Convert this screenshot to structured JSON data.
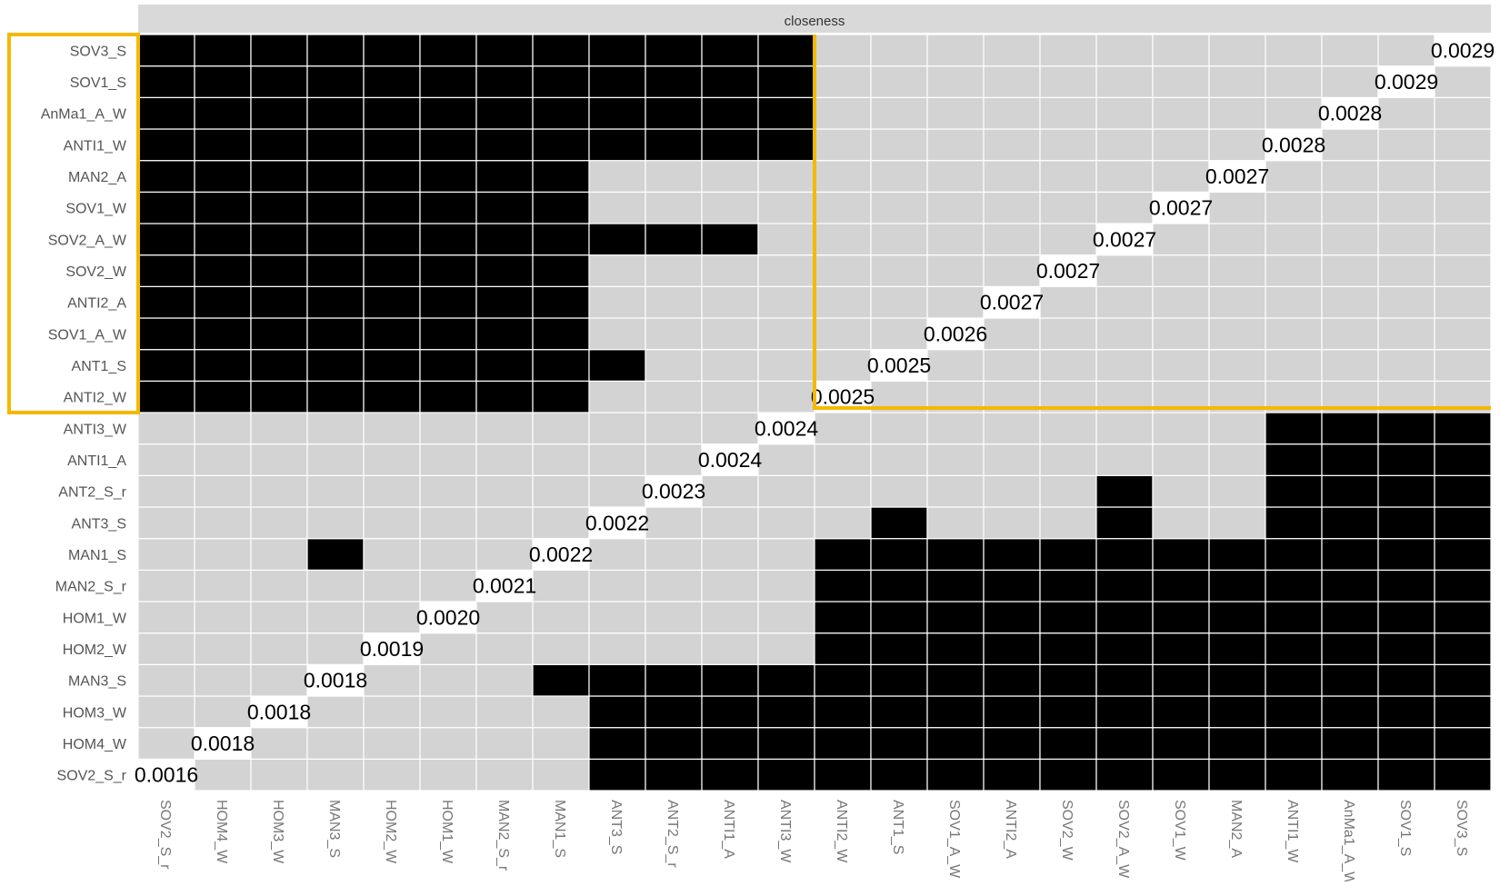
{
  "chart_data": {
    "type": "heatmap",
    "title": "closeness",
    "colors": {
      "significant": "#000000",
      "non_significant": "#d3d3d3",
      "label_bg": "#ffffff",
      "highlight": "#f5b800"
    },
    "nodes": [
      "SOV2_S_r",
      "HOM4_W",
      "HOM3_W",
      "MAN3_S",
      "HOM2_W",
      "HOM1_W",
      "MAN2_S_r",
      "MAN1_S",
      "ANT3_S",
      "ANT2_S_r",
      "ANTI1_A",
      "ANTI3_W",
      "ANTI2_W",
      "ANT1_S",
      "SOV1_A_W",
      "ANTI2_A",
      "SOV2_W",
      "SOV2_A_W",
      "SOV1_W",
      "MAN2_A",
      "ANTI1_W",
      "AnMa1_A_W",
      "SOV1_S",
      "SOV3_S"
    ],
    "y_tick_labels_top_to_bottom": [
      "SOV3_S",
      "SOV1_S",
      "AnMa1_A_W",
      "ANTI1_W",
      "MAN2_A",
      "SOV1_W",
      "SOV2_A_W",
      "SOV2_W",
      "ANTI2_A",
      "SOV1_A_W",
      "ANT1_S",
      "ANTI2_W",
      "ANTI3_W",
      "ANTI1_A",
      "ANT2_S_r",
      "ANT3_S",
      "MAN1_S",
      "MAN2_S_r",
      "HOM1_W",
      "HOM2_W",
      "MAN3_S",
      "HOM3_W",
      "HOM4_W",
      "SOV2_S_r"
    ],
    "diagonal_values": [
      "0.0016",
      "0.0018",
      "0.0018",
      "0.0018",
      "0.0019",
      "0.0020",
      "0.0021",
      "0.0022",
      "0.0022",
      "0.0023",
      "0.0024",
      "0.0024",
      "0.0025",
      "0.0025",
      "0.0026",
      "0.0027",
      "0.0027",
      "0.0027",
      "0.0027",
      "0.0027",
      "0.0028",
      "0.0028",
      "0.0029",
      "0.0029"
    ],
    "significant_pairs": [
      [
        0,
        8
      ],
      [
        0,
        9
      ],
      [
        0,
        10
      ],
      [
        0,
        11
      ],
      [
        0,
        12
      ],
      [
        0,
        13
      ],
      [
        0,
        14
      ],
      [
        0,
        15
      ],
      [
        0,
        16
      ],
      [
        0,
        17
      ],
      [
        0,
        18
      ],
      [
        0,
        19
      ],
      [
        0,
        20
      ],
      [
        0,
        21
      ],
      [
        0,
        22
      ],
      [
        0,
        23
      ],
      [
        1,
        8
      ],
      [
        1,
        9
      ],
      [
        1,
        10
      ],
      [
        1,
        11
      ],
      [
        1,
        12
      ],
      [
        1,
        13
      ],
      [
        1,
        14
      ],
      [
        1,
        15
      ],
      [
        1,
        16
      ],
      [
        1,
        17
      ],
      [
        1,
        18
      ],
      [
        1,
        19
      ],
      [
        1,
        20
      ],
      [
        1,
        21
      ],
      [
        1,
        22
      ],
      [
        1,
        23
      ],
      [
        2,
        8
      ],
      [
        2,
        9
      ],
      [
        2,
        10
      ],
      [
        2,
        11
      ],
      [
        2,
        12
      ],
      [
        2,
        13
      ],
      [
        2,
        14
      ],
      [
        2,
        15
      ],
      [
        2,
        16
      ],
      [
        2,
        17
      ],
      [
        2,
        18
      ],
      [
        2,
        19
      ],
      [
        2,
        20
      ],
      [
        2,
        21
      ],
      [
        2,
        22
      ],
      [
        2,
        23
      ],
      [
        3,
        7
      ],
      [
        3,
        8
      ],
      [
        3,
        9
      ],
      [
        3,
        10
      ],
      [
        3,
        11
      ],
      [
        3,
        12
      ],
      [
        3,
        13
      ],
      [
        3,
        14
      ],
      [
        3,
        15
      ],
      [
        3,
        16
      ],
      [
        3,
        17
      ],
      [
        3,
        18
      ],
      [
        3,
        19
      ],
      [
        3,
        20
      ],
      [
        3,
        21
      ],
      [
        3,
        22
      ],
      [
        3,
        23
      ],
      [
        4,
        12
      ],
      [
        4,
        13
      ],
      [
        4,
        14
      ],
      [
        4,
        15
      ],
      [
        4,
        16
      ],
      [
        4,
        17
      ],
      [
        4,
        18
      ],
      [
        4,
        19
      ],
      [
        4,
        20
      ],
      [
        4,
        21
      ],
      [
        4,
        22
      ],
      [
        4,
        23
      ],
      [
        5,
        12
      ],
      [
        5,
        13
      ],
      [
        5,
        14
      ],
      [
        5,
        15
      ],
      [
        5,
        16
      ],
      [
        5,
        17
      ],
      [
        5,
        18
      ],
      [
        5,
        19
      ],
      [
        5,
        20
      ],
      [
        5,
        21
      ],
      [
        5,
        22
      ],
      [
        5,
        23
      ],
      [
        6,
        12
      ],
      [
        6,
        13
      ],
      [
        6,
        14
      ],
      [
        6,
        15
      ],
      [
        6,
        16
      ],
      [
        6,
        17
      ],
      [
        6,
        18
      ],
      [
        6,
        19
      ],
      [
        6,
        20
      ],
      [
        6,
        21
      ],
      [
        6,
        22
      ],
      [
        6,
        23
      ],
      [
        7,
        3
      ],
      [
        7,
        12
      ],
      [
        7,
        13
      ],
      [
        7,
        14
      ],
      [
        7,
        15
      ],
      [
        7,
        16
      ],
      [
        7,
        17
      ],
      [
        7,
        18
      ],
      [
        7,
        19
      ],
      [
        7,
        20
      ],
      [
        7,
        21
      ],
      [
        7,
        22
      ],
      [
        7,
        23
      ],
      [
        8,
        13
      ],
      [
        8,
        17
      ],
      [
        8,
        20
      ],
      [
        8,
        21
      ],
      [
        8,
        22
      ],
      [
        8,
        23
      ],
      [
        9,
        17
      ],
      [
        9,
        20
      ],
      [
        9,
        21
      ],
      [
        9,
        22
      ],
      [
        9,
        23
      ],
      [
        10,
        20
      ],
      [
        10,
        21
      ],
      [
        10,
        22
      ],
      [
        10,
        23
      ],
      [
        11,
        20
      ],
      [
        11,
        21
      ],
      [
        11,
        22
      ],
      [
        11,
        23
      ],
      [
        12,
        0
      ],
      [
        12,
        1
      ],
      [
        12,
        2
      ],
      [
        12,
        3
      ],
      [
        12,
        4
      ],
      [
        12,
        5
      ],
      [
        12,
        6
      ],
      [
        12,
        7
      ],
      [
        13,
        0
      ],
      [
        13,
        1
      ],
      [
        13,
        2
      ],
      [
        13,
        3
      ],
      [
        13,
        4
      ],
      [
        13,
        5
      ],
      [
        13,
        6
      ],
      [
        13,
        7
      ],
      [
        13,
        8
      ],
      [
        14,
        0
      ],
      [
        14,
        1
      ],
      [
        14,
        2
      ],
      [
        14,
        3
      ],
      [
        14,
        4
      ],
      [
        14,
        5
      ],
      [
        14,
        6
      ],
      [
        14,
        7
      ],
      [
        15,
        0
      ],
      [
        15,
        1
      ],
      [
        15,
        2
      ],
      [
        15,
        3
      ],
      [
        15,
        4
      ],
      [
        15,
        5
      ],
      [
        15,
        6
      ],
      [
        15,
        7
      ],
      [
        16,
        0
      ],
      [
        16,
        1
      ],
      [
        16,
        2
      ],
      [
        16,
        3
      ],
      [
        16,
        4
      ],
      [
        16,
        5
      ],
      [
        16,
        6
      ],
      [
        16,
        7
      ],
      [
        17,
        0
      ],
      [
        17,
        1
      ],
      [
        17,
        2
      ],
      [
        17,
        3
      ],
      [
        17,
        4
      ],
      [
        17,
        5
      ],
      [
        17,
        6
      ],
      [
        17,
        7
      ],
      [
        17,
        8
      ],
      [
        17,
        9
      ],
      [
        17,
        10
      ],
      [
        18,
        0
      ],
      [
        18,
        1
      ],
      [
        18,
        2
      ],
      [
        18,
        3
      ],
      [
        18,
        4
      ],
      [
        18,
        5
      ],
      [
        18,
        6
      ],
      [
        18,
        7
      ],
      [
        19,
        0
      ],
      [
        19,
        1
      ],
      [
        19,
        2
      ],
      [
        19,
        3
      ],
      [
        19,
        4
      ],
      [
        19,
        5
      ],
      [
        19,
        6
      ],
      [
        19,
        7
      ],
      [
        20,
        0
      ],
      [
        20,
        1
      ],
      [
        20,
        2
      ],
      [
        20,
        3
      ],
      [
        20,
        4
      ],
      [
        20,
        5
      ],
      [
        20,
        6
      ],
      [
        20,
        7
      ],
      [
        20,
        8
      ],
      [
        20,
        9
      ],
      [
        20,
        10
      ],
      [
        20,
        11
      ],
      [
        21,
        0
      ],
      [
        21,
        1
      ],
      [
        21,
        2
      ],
      [
        21,
        3
      ],
      [
        21,
        4
      ],
      [
        21,
        5
      ],
      [
        21,
        6
      ],
      [
        21,
        7
      ],
      [
        21,
        8
      ],
      [
        21,
        9
      ],
      [
        21,
        10
      ],
      [
        21,
        11
      ],
      [
        22,
        0
      ],
      [
        22,
        1
      ],
      [
        22,
        2
      ],
      [
        22,
        3
      ],
      [
        22,
        4
      ],
      [
        22,
        5
      ],
      [
        22,
        6
      ],
      [
        22,
        7
      ],
      [
        22,
        8
      ],
      [
        22,
        9
      ],
      [
        22,
        10
      ],
      [
        22,
        11
      ],
      [
        23,
        0
      ],
      [
        23,
        1
      ],
      [
        23,
        2
      ],
      [
        23,
        3
      ],
      [
        23,
        4
      ],
      [
        23,
        5
      ],
      [
        23,
        6
      ],
      [
        23,
        7
      ],
      [
        23,
        8
      ],
      [
        23,
        9
      ],
      [
        23,
        10
      ],
      [
        23,
        11
      ]
    ],
    "highlighted_nodes": [
      "ANTI2_W",
      "ANT1_S",
      "SOV1_A_W",
      "ANTI2_A",
      "SOV2_W",
      "SOV2_A_W",
      "SOV1_W",
      "MAN2_A",
      "ANTI1_W",
      "AnMa1_A_W",
      "SOV1_S",
      "SOV3_S"
    ]
  }
}
